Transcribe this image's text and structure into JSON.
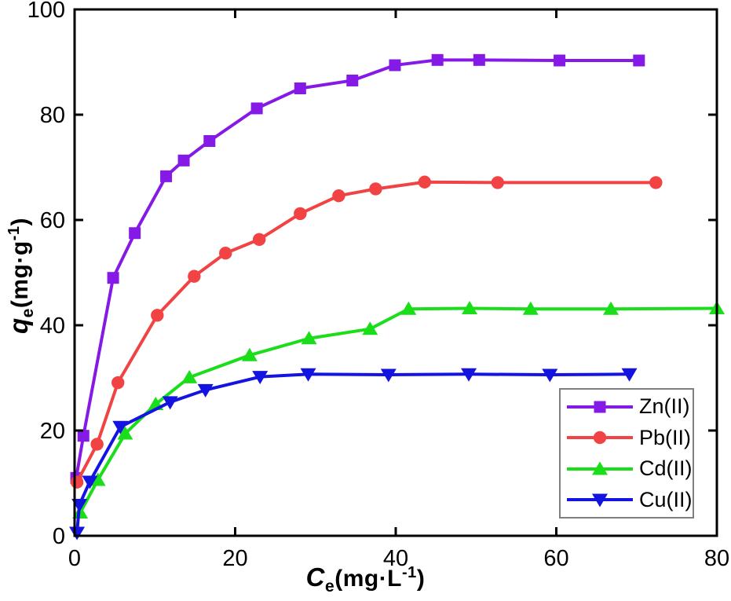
{
  "chart_data": {
    "type": "line",
    "title": "",
    "xlabel": {
      "symbol": "C",
      "sub": "e",
      "unit_open": "(mg·L",
      "sup": "-1",
      "unit_close": ")"
    },
    "ylabel": {
      "symbol": "q",
      "sub": "e",
      "unit_open": "(mg·g",
      "sup": "-1",
      "unit_close": ")"
    },
    "xlim": [
      0,
      80
    ],
    "ylim": [
      0,
      100
    ],
    "xticks": [
      0,
      20,
      40,
      60,
      80
    ],
    "yticks": [
      0,
      20,
      40,
      60,
      80,
      100
    ],
    "grid": false,
    "legend_position": "lower right",
    "series": [
      {
        "name": "Zn(II)",
        "color": "#8519E6",
        "marker": "square",
        "x": [
          0.2,
          1.1,
          4.8,
          7.5,
          11.4,
          13.6,
          16.8,
          22.7,
          28.1,
          34.6,
          39.9,
          45.2,
          50.4,
          60.4,
          70.3
        ],
        "y": [
          11,
          19,
          49,
          57.5,
          68.3,
          71.3,
          75,
          81.2,
          85,
          86.5,
          89.4,
          90.4,
          90.4,
          90.3,
          90.3
        ]
      },
      {
        "name": "Pb(II)",
        "color": "#F14343",
        "marker": "circle",
        "x": [
          0.3,
          2.8,
          5.4,
          10.3,
          14.9,
          18.8,
          23.0,
          28.1,
          32.9,
          37.5,
          43.6,
          52.7,
          72.4
        ],
        "y": [
          10.2,
          17.4,
          29.1,
          41.9,
          49.3,
          53.7,
          56.3,
          61.2,
          64.6,
          65.9,
          67.2,
          67.1,
          67.1
        ]
      },
      {
        "name": "Cd(II)",
        "color": "#1ADE1A",
        "marker": "triangle-up",
        "x": [
          0.7,
          2.9,
          6.3,
          10.1,
          14.3,
          21.8,
          29.2,
          36.8,
          41.6,
          49.2,
          56.8,
          66.8,
          80
        ],
        "y": [
          4.4,
          10.6,
          19.4,
          25.0,
          30.1,
          34.3,
          37.5,
          39.3,
          43.1,
          43.2,
          43.1,
          43.1,
          43.2
        ]
      },
      {
        "name": "Cu(II)",
        "color": "#1414E0",
        "marker": "triangle-down",
        "x": [
          0.3,
          0.6,
          1.9,
          5.7,
          11.9,
          16.3,
          23.1,
          29.1,
          39.1,
          49.1,
          59.2,
          69.1
        ],
        "y": [
          0.6,
          5.9,
          10.3,
          20.7,
          25.4,
          27.7,
          30.2,
          30.7,
          30.6,
          30.7,
          30.6,
          30.7
        ]
      }
    ],
    "legend": [
      "Zn(II)",
      "Pb(II)",
      "Cd(II)",
      "Cu(II)"
    ]
  },
  "colors": {
    "axis": "#000000",
    "legend_border": "#7f7f7f",
    "background": "#ffffff"
  }
}
